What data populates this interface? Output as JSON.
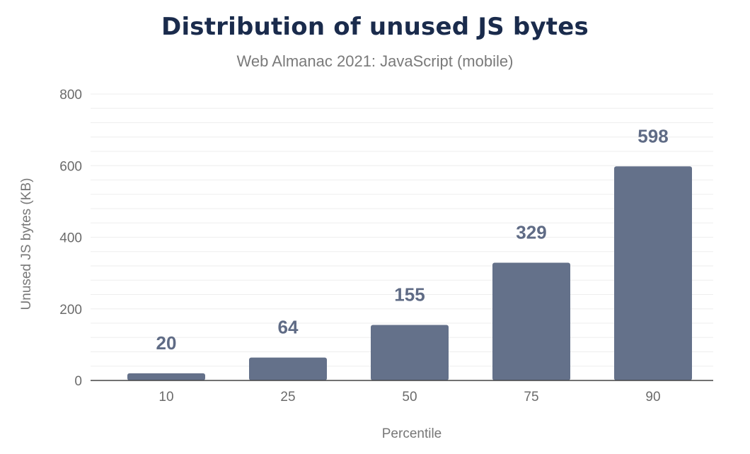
{
  "chart_data": {
    "type": "bar",
    "title": "Distribution of unused JS bytes",
    "subtitle": "Web Almanac 2021: JavaScript (mobile)",
    "xlabel": "Percentile",
    "ylabel": "Unused JS bytes (KB)",
    "categories": [
      "10",
      "25",
      "50",
      "75",
      "90"
    ],
    "values": [
      20,
      64,
      155,
      329,
      598
    ],
    "ylim": [
      0,
      800
    ],
    "yticks": [
      0,
      200,
      400,
      600,
      800
    ],
    "grid": true,
    "bar_color": "#64718a"
  }
}
